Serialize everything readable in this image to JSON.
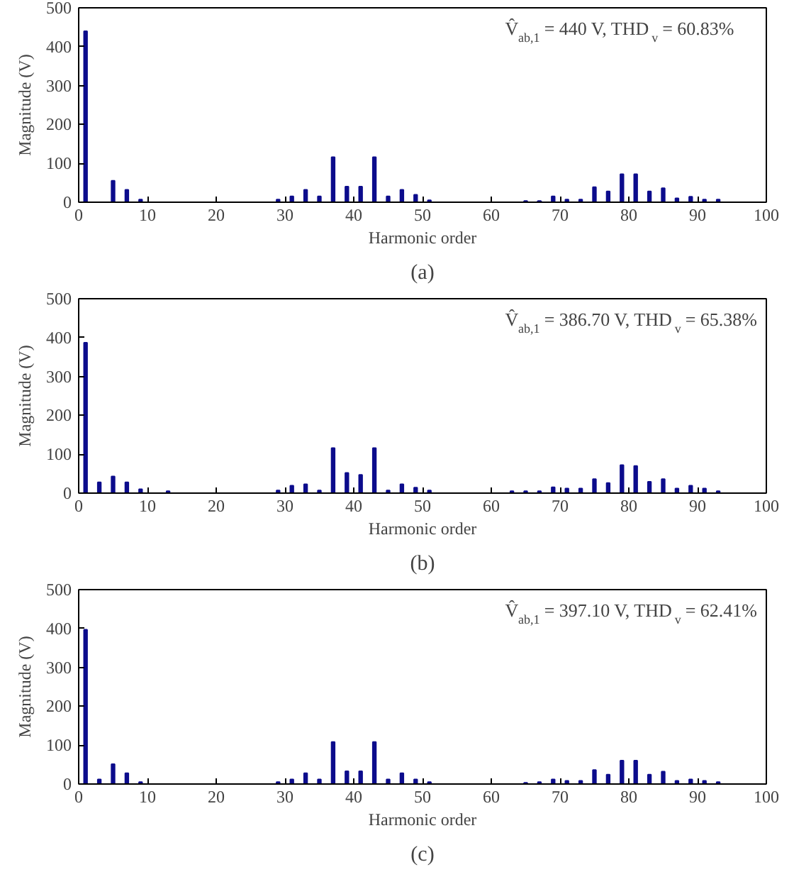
{
  "chart_data": [
    {
      "type": "bar",
      "title": "(a)",
      "xlabel": "Harmonic order",
      "ylabel": "Magnitude (V)",
      "xlim": [
        0,
        100
      ],
      "xticks": [
        0,
        10,
        20,
        30,
        40,
        50,
        60,
        70,
        80,
        90,
        100
      ],
      "ylim": [
        0,
        500
      ],
      "yticks": [
        0,
        100,
        200,
        300,
        400,
        500
      ],
      "grid": false,
      "annotations": [
        "V̂$_{ab,1}$ = 440 V, THD$_{v}$ = 60.83%"
      ],
      "x": [
        1,
        5,
        7,
        9,
        29,
        31,
        33,
        35,
        37,
        39,
        41,
        43,
        45,
        47,
        49,
        51,
        65,
        67,
        69,
        71,
        73,
        75,
        77,
        79,
        81,
        83,
        85,
        87,
        89,
        91,
        93
      ],
      "series": [
        {
          "color": "#0c0c8c",
          "values": [
            440,
            55,
            32,
            7,
            7,
            15,
            32,
            15,
            116,
            40,
            40,
            116,
            15,
            32,
            19,
            5,
            3,
            3,
            15,
            7,
            7,
            39,
            28,
            72,
            72,
            28,
            36,
            10,
            14,
            7,
            7
          ]
        }
      ]
    },
    {
      "type": "bar",
      "title": "(b)",
      "xlabel": "Harmonic order",
      "ylabel": "Magnitude (V)",
      "xlim": [
        0,
        100
      ],
      "xticks": [
        0,
        10,
        20,
        30,
        40,
        50,
        60,
        70,
        80,
        90,
        100
      ],
      "ylim": [
        0,
        500
      ],
      "yticks": [
        0,
        100,
        200,
        300,
        400,
        500
      ],
      "grid": false,
      "annotations": [
        "V̂$_{ab,1}$ = 386.70 V, THD$_{v}$ = 65.38%"
      ],
      "x": [
        1,
        3,
        5,
        7,
        9,
        13,
        29,
        31,
        33,
        35,
        37,
        39,
        41,
        43,
        45,
        47,
        49,
        51,
        63,
        65,
        67,
        69,
        71,
        73,
        75,
        77,
        79,
        81,
        83,
        85,
        87,
        89,
        91,
        93
      ],
      "series": [
        {
          "color": "#0c0c8c",
          "values": [
            387,
            28,
            43,
            28,
            10,
            5,
            7,
            19,
            23,
            7,
            116,
            52,
            47,
            116,
            7,
            23,
            14,
            7,
            5,
            5,
            5,
            15,
            12,
            12,
            36,
            26,
            72,
            70,
            29,
            36,
            12,
            19,
            12,
            5
          ]
        }
      ]
    },
    {
      "type": "bar",
      "title": "(c)",
      "xlabel": "Harmonic order",
      "ylabel": "Magnitude (V)",
      "xlim": [
        0,
        100
      ],
      "xticks": [
        0,
        10,
        20,
        30,
        40,
        50,
        60,
        70,
        80,
        90,
        100
      ],
      "ylim": [
        0,
        500
      ],
      "yticks": [
        0,
        100,
        200,
        300,
        400,
        500
      ],
      "grid": false,
      "annotations": [
        "V̂$_{ab,1}$ = 397.10 V, THD$_{v}$ = 62.41%"
      ],
      "x": [
        1,
        3,
        5,
        7,
        9,
        29,
        31,
        33,
        35,
        37,
        39,
        41,
        43,
        45,
        47,
        49,
        51,
        65,
        67,
        69,
        71,
        73,
        75,
        77,
        79,
        81,
        83,
        85,
        87,
        89,
        91,
        93
      ],
      "series": [
        {
          "color": "#0c0c8c",
          "values": [
            397,
            12,
            51,
            28,
            5,
            5,
            12,
            28,
            12,
            108,
            33,
            33,
            108,
            12,
            28,
            12,
            5,
            3,
            5,
            12,
            8,
            8,
            36,
            24,
            60,
            60,
            24,
            32,
            8,
            12,
            8,
            5
          ]
        }
      ]
    }
  ]
}
